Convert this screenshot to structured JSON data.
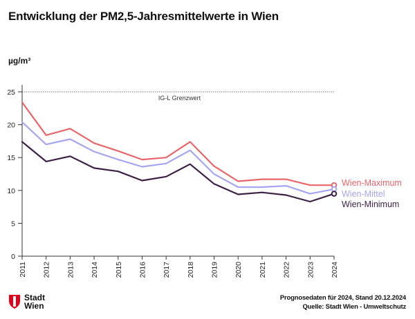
{
  "title": "Entwicklung der PM2,5-Jahresmittelwerte in Wien",
  "footer": {
    "logo_text": "Stadt\nWien",
    "note": "Prognosedaten für 2024, Stand 20.12.2024",
    "source": "Quelle: Stadt Wien - Umweltschutz"
  },
  "colors": {
    "max": "#e8656a",
    "mean": "#a5a5f0",
    "min": "#3c1f45",
    "axis": "#333333",
    "logo": "#e2001a"
  },
  "chart_data": {
    "type": "line",
    "title": "Entwicklung der PM2,5-Jahresmittelwerte in Wien",
    "ylabel": "µg/m³",
    "xlabel": "",
    "ylim": [
      0,
      25
    ],
    "yticks": [
      0,
      5,
      10,
      15,
      20,
      25
    ],
    "grid": false,
    "legend": "right, at line ends",
    "x": [
      "2011",
      "2012",
      "2013",
      "2014",
      "2015",
      "2016",
      "2017",
      "2018",
      "2019",
      "2020",
      "2021",
      "2022",
      "2023",
      "2024"
    ],
    "series": [
      {
        "name": "Wien-Maximum",
        "color": "#e8656a",
        "values": [
          23.4,
          18.4,
          19.4,
          17.2,
          16.0,
          14.7,
          15.0,
          17.4,
          13.7,
          11.4,
          11.7,
          11.7,
          10.8,
          10.8
        ]
      },
      {
        "name": "Wien-Mittel",
        "color": "#a5a5f0",
        "values": [
          20.4,
          17.0,
          17.8,
          15.9,
          14.7,
          13.6,
          14.1,
          16.1,
          12.5,
          10.5,
          10.5,
          10.7,
          9.5,
          10.2
        ]
      },
      {
        "name": "Wien-Minimum",
        "color": "#3c1f45",
        "values": [
          17.4,
          14.4,
          15.2,
          13.4,
          12.9,
          11.5,
          12.1,
          14.0,
          11.0,
          9.4,
          9.7,
          9.3,
          8.3,
          9.5
        ]
      }
    ],
    "annotations": [
      {
        "label": "IG-L Grenzwert",
        "y": 25
      }
    ]
  }
}
